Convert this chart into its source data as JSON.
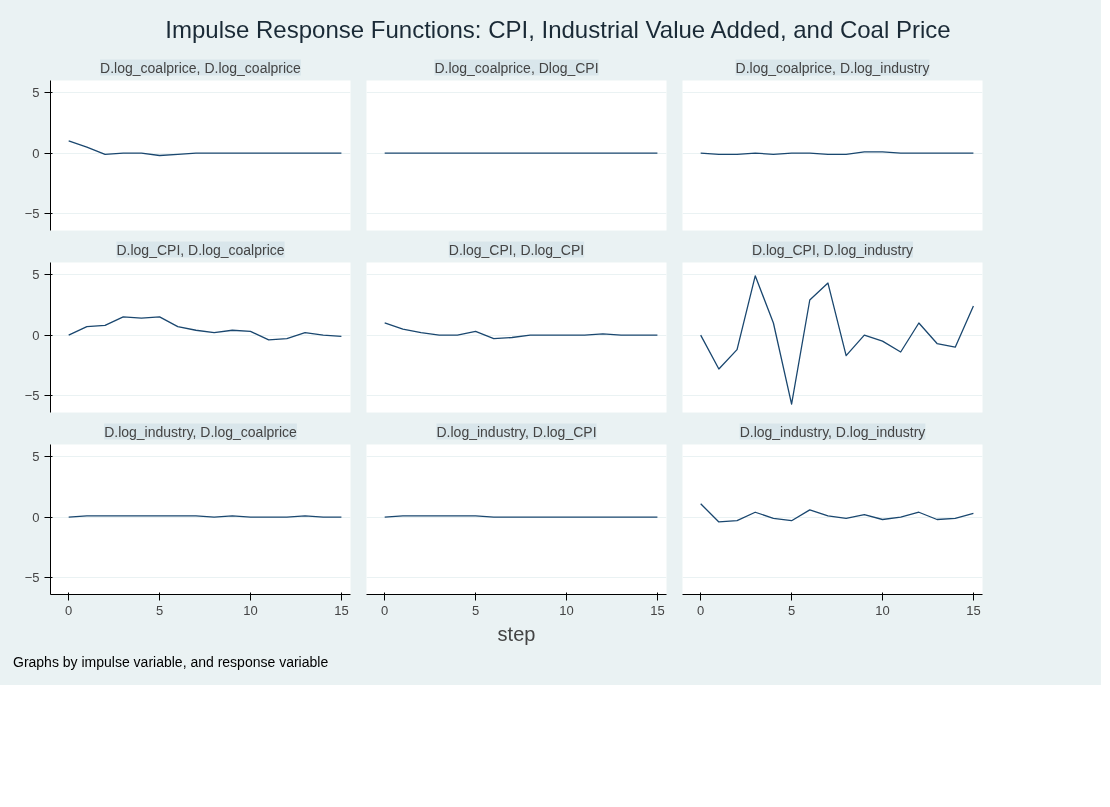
{
  "chart_data": [
    {
      "type": "other",
      "title": "Impulse Response Functions: CPI, Industrial Value Added, and Coal Price",
      "annotations": [
        "Graphs by impulse variable, and response variable"
      ]
    },
    {
      "type": "line",
      "title": "D.log_coalprice, D.log_coalprice",
      "x": [
        0,
        1,
        2,
        3,
        4,
        5,
        6,
        7,
        8,
        9,
        10,
        11,
        12,
        13,
        14,
        15
      ],
      "xlim": [
        -1,
        15.5
      ],
      "ylim": [
        -6.4,
        6
      ],
      "xticks": [
        0,
        5,
        10,
        15
      ],
      "yticks": [
        -5,
        0,
        5
      ],
      "grid": "y",
      "tick_labels": "y",
      "series": [
        {
          "color": "#1a476f",
          "values": [
            1.0,
            0.5,
            -0.1,
            0,
            0,
            -0.2,
            -0.1,
            0,
            0,
            0,
            0,
            0,
            0,
            0,
            0,
            0
          ]
        }
      ]
    },
    {
      "type": "line",
      "title": "D.log_coalprice, Dlog_CPI",
      "x": [
        0,
        1,
        2,
        3,
        4,
        5,
        6,
        7,
        8,
        9,
        10,
        11,
        12,
        13,
        14,
        15
      ],
      "xlim": [
        -1,
        15.5
      ],
      "ylim": [
        -6.4,
        6
      ],
      "xticks": [
        0,
        5,
        10,
        15
      ],
      "yticks": [
        -5,
        0,
        5
      ],
      "grid": "y",
      "tick_labels": false,
      "series": [
        {
          "color": "#1a476f",
          "values": [
            0,
            0,
            0,
            0,
            0,
            0,
            0,
            0,
            0,
            0,
            0,
            0,
            0,
            0,
            0,
            0
          ]
        }
      ]
    },
    {
      "type": "line",
      "title": "D.log_coalprice, D.log_industry",
      "x": [
        0,
        1,
        2,
        3,
        4,
        5,
        6,
        7,
        8,
        9,
        10,
        11,
        12,
        13,
        14,
        15
      ],
      "xlim": [
        -1,
        15.5
      ],
      "ylim": [
        -6.4,
        6
      ],
      "xticks": [
        0,
        5,
        10,
        15
      ],
      "yticks": [
        -5,
        0,
        5
      ],
      "grid": "y",
      "tick_labels": false,
      "series": [
        {
          "color": "#1a476f",
          "values": [
            0,
            -0.1,
            -0.1,
            0,
            -0.1,
            0,
            0,
            -0.1,
            -0.1,
            0.1,
            0.1,
            0,
            0,
            0,
            0,
            0
          ]
        }
      ]
    },
    {
      "type": "line",
      "title": "D.log_CPI, D.log_coalprice",
      "x": [
        0,
        1,
        2,
        3,
        4,
        5,
        6,
        7,
        8,
        9,
        10,
        11,
        12,
        13,
        14,
        15
      ],
      "xlim": [
        -1,
        15.5
      ],
      "ylim": [
        -6.4,
        6
      ],
      "xticks": [
        0,
        5,
        10,
        15
      ],
      "yticks": [
        -5,
        0,
        5
      ],
      "grid": "y",
      "tick_labels": "y",
      "series": [
        {
          "color": "#1a476f",
          "values": [
            0,
            0.7,
            0.8,
            1.5,
            1.4,
            1.5,
            0.7,
            0.4,
            0.2,
            0.4,
            0.3,
            -0.4,
            -0.3,
            0.2,
            0,
            -0.1
          ]
        }
      ]
    },
    {
      "type": "line",
      "title": "D.log_CPI, D.log_CPI",
      "x": [
        0,
        1,
        2,
        3,
        4,
        5,
        6,
        7,
        8,
        9,
        10,
        11,
        12,
        13,
        14,
        15
      ],
      "xlim": [
        -1,
        15.5
      ],
      "ylim": [
        -6.4,
        6
      ],
      "xticks": [
        0,
        5,
        10,
        15
      ],
      "yticks": [
        -5,
        0,
        5
      ],
      "grid": "y",
      "tick_labels": false,
      "series": [
        {
          "color": "#1a476f",
          "values": [
            1.0,
            0.5,
            0.2,
            0,
            0,
            0.3,
            -0.3,
            -0.2,
            0,
            0,
            0,
            0,
            0.1,
            0,
            0,
            0
          ]
        }
      ]
    },
    {
      "type": "line",
      "title": "D.log_CPI, D.log_industry",
      "x": [
        0,
        1,
        2,
        3,
        4,
        5,
        6,
        7,
        8,
        9,
        10,
        11,
        12,
        13,
        14,
        15
      ],
      "xlim": [
        -1,
        15.5
      ],
      "ylim": [
        -6.4,
        6
      ],
      "xticks": [
        0,
        5,
        10,
        15
      ],
      "yticks": [
        -5,
        0,
        5
      ],
      "grid": "y",
      "tick_labels": false,
      "series": [
        {
          "color": "#1a476f",
          "values": [
            0,
            -2.8,
            -1.2,
            4.9,
            1.0,
            -5.7,
            2.9,
            4.3,
            -1.7,
            0,
            -0.5,
            -1.4,
            1.0,
            -0.7,
            -1.0,
            2.4
          ]
        }
      ]
    },
    {
      "type": "line",
      "title": "D.log_industry, D.log_coalprice",
      "x": [
        0,
        1,
        2,
        3,
        4,
        5,
        6,
        7,
        8,
        9,
        10,
        11,
        12,
        13,
        14,
        15
      ],
      "xlim": [
        -1,
        15.5
      ],
      "ylim": [
        -6.4,
        6
      ],
      "xticks": [
        0,
        5,
        10,
        15
      ],
      "yticks": [
        -5,
        0,
        5
      ],
      "grid": "y",
      "series": [
        {
          "color": "#1a476f",
          "values": [
            0,
            0.1,
            0.1,
            0.1,
            0.1,
            0.1,
            0.1,
            0.1,
            0,
            0.1,
            0,
            0,
            0,
            0.1,
            0,
            0
          ]
        }
      ]
    },
    {
      "type": "line",
      "title": "D.log_industry, D.log_CPI",
      "xlabel": "step",
      "x": [
        0,
        1,
        2,
        3,
        4,
        5,
        6,
        7,
        8,
        9,
        10,
        11,
        12,
        13,
        14,
        15
      ],
      "xlim": [
        -1,
        15.5
      ],
      "ylim": [
        -6.4,
        6
      ],
      "xticks": [
        0,
        5,
        10,
        15
      ],
      "yticks": [
        -5,
        0,
        5
      ],
      "grid": "y",
      "tick_labels": "x",
      "series": [
        {
          "color": "#1a476f",
          "values": [
            0,
            0.1,
            0.1,
            0.1,
            0.1,
            0.1,
            0,
            0,
            0,
            0,
            0,
            0,
            0,
            0,
            0,
            0
          ]
        }
      ]
    },
    {
      "type": "line",
      "title": "D.log_industry, D.log_industry",
      "x": [
        0,
        1,
        2,
        3,
        4,
        5,
        6,
        7,
        8,
        9,
        10,
        11,
        12,
        13,
        14,
        15
      ],
      "xlim": [
        -1,
        15.5
      ],
      "ylim": [
        -6.4,
        6
      ],
      "xticks": [
        0,
        5,
        10,
        15
      ],
      "yticks": [
        -5,
        0,
        5
      ],
      "grid": "y",
      "tick_labels": "x",
      "series": [
        {
          "color": "#1a476f",
          "values": [
            1.1,
            -0.4,
            -0.3,
            0.4,
            -0.1,
            -0.3,
            0.6,
            0.1,
            -0.1,
            0.2,
            -0.2,
            0,
            0.4,
            -0.2,
            -0.1,
            0.3
          ]
        }
      ]
    }
  ]
}
